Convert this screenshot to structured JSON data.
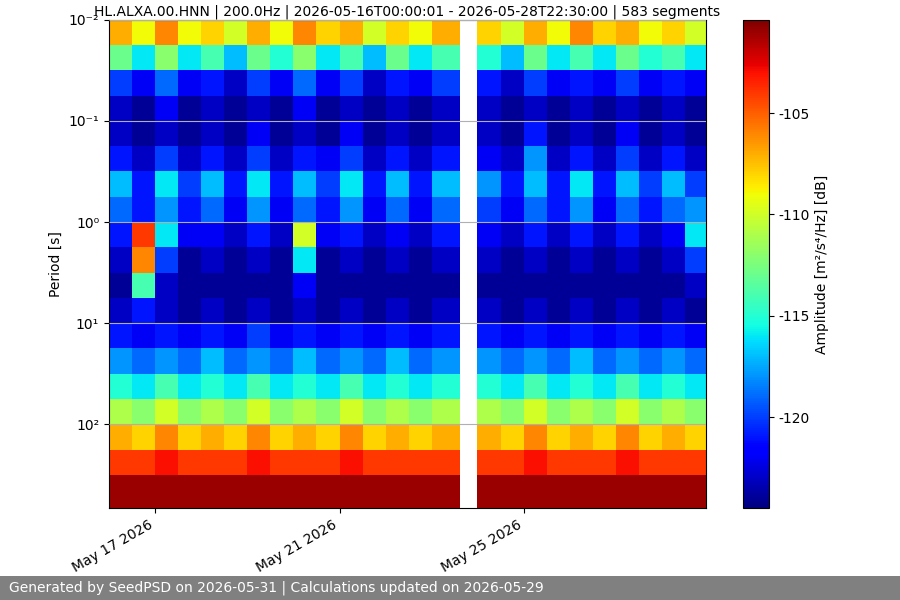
{
  "chart_data": {
    "type": "heatmap",
    "title": "HL.ALXA.00.HNN | 200.0Hz | 2026-05-16T00:00:01 - 2026-05-28T22:30:00 | 583 segments",
    "ylabel": "Period [s]",
    "footer": "Generated by SeedPSD on 2026-05-31 | Calculations updated on 2026-05-29",
    "log": "y",
    "grid": "y",
    "x": [
      "2026-05-16T00:00",
      "2026-05-16T12:00",
      "2026-05-17T00:00",
      "2026-05-17T12:00",
      "2026-05-18T00:00",
      "2026-05-18T12:00",
      "2026-05-19T00:00",
      "2026-05-19T12:00",
      "2026-05-20T00:00",
      "2026-05-20T12:00",
      "2026-05-21T00:00",
      "2026-05-21T12:00",
      "2026-05-22T00:00",
      "2026-05-22T12:00",
      "2026-05-23T00:00",
      "2026-05-23T14:30",
      "2026-05-23T23:30",
      "2026-05-24T12:00",
      "2026-05-25T00:00",
      "2026-05-25T12:00",
      "2026-05-26T00:00",
      "2026-05-26T12:00",
      "2026-05-27T00:00",
      "2026-05-27T12:00",
      "2026-05-28T00:00",
      "2026-05-28T12:00",
      "2026-05-28T22:30"
    ],
    "y": [
      0.01,
      0.0178,
      0.0316,
      0.0562,
      0.1,
      0.178,
      0.316,
      0.562,
      1,
      1.78,
      3.16,
      5.62,
      10,
      17.8,
      31.6,
      56.2,
      100,
      178,
      316,
      676
    ],
    "cells": [
      [
        -107,
        -109,
        -106,
        -109,
        -108,
        -110,
        -107,
        -109,
        -106,
        -108,
        -107,
        -110,
        -108,
        -109,
        -107,
        null,
        -108,
        -110,
        -107,
        -109,
        -106,
        -108,
        -107,
        -109,
        -108,
        -110
      ],
      [
        -113,
        -116,
        -112,
        -116,
        -114,
        -117,
        -113,
        -115,
        -112,
        -116,
        -114,
        -117,
        -113,
        -116,
        -114,
        null,
        -115,
        -117,
        -113,
        -116,
        -114,
        -116,
        -113,
        -115,
        -114,
        -116
      ],
      [
        -120,
        -122,
        -119,
        -122,
        -121,
        -123,
        -120,
        -122,
        -119,
        -122,
        -120,
        -123,
        -121,
        -122,
        -120,
        null,
        -121,
        -123,
        -120,
        -122,
        -121,
        -122,
        -120,
        -122,
        -121,
        -122
      ],
      [
        -123,
        -124,
        -122,
        -124,
        -123,
        -124,
        -123,
        -124,
        -122,
        -124,
        -123,
        -124,
        -123,
        -124,
        -123,
        null,
        -123,
        -124,
        -123,
        -124,
        -123,
        -124,
        -123,
        -124,
        -123,
        -124
      ],
      [
        -123,
        -124,
        -123,
        -124,
        -123,
        -124,
        -122,
        -124,
        -123,
        -124,
        -122,
        -124,
        -123,
        -124,
        -123,
        null,
        -123,
        -124,
        -121,
        -124,
        -123,
        -124,
        -122,
        -124,
        -123,
        -124
      ],
      [
        -121,
        -123,
        -120,
        -123,
        -121,
        -123,
        -120,
        -123,
        -121,
        -122,
        -120,
        -123,
        -121,
        -123,
        -121,
        null,
        -122,
        -123,
        -118,
        -123,
        -121,
        -123,
        -120,
        -123,
        -121,
        -123
      ],
      [
        -117,
        -121,
        -116,
        -120,
        -117,
        -121,
        -116,
        -121,
        -117,
        -120,
        -116,
        -121,
        -117,
        -121,
        -117,
        null,
        -118,
        -121,
        -117,
        -121,
        -116,
        -121,
        -117,
        -120,
        -117,
        -120
      ],
      [
        -119,
        -121,
        -118,
        -121,
        -119,
        -122,
        -118,
        -122,
        -119,
        -121,
        -118,
        -122,
        -119,
        -122,
        -119,
        null,
        -120,
        -122,
        -119,
        -121,
        -118,
        -122,
        -119,
        -121,
        -119,
        -118
      ],
      [
        -121,
        -104,
        -116,
        -122,
        -122,
        -123,
        -121,
        -123,
        -110,
        -122,
        -121,
        -123,
        -122,
        -123,
        -121,
        null,
        -122,
        -123,
        -121,
        -123,
        -121,
        -123,
        -121,
        -123,
        -122,
        -116
      ],
      [
        -123,
        -106,
        -120,
        -124,
        -123,
        -124,
        -123,
        -124,
        -116,
        -124,
        -123,
        -124,
        -123,
        -124,
        -123,
        null,
        -123,
        -124,
        -123,
        -124,
        -123,
        -124,
        -123,
        -124,
        -123,
        -120
      ],
      [
        -124,
        -114,
        -123,
        -124,
        -124,
        -124,
        -124,
        -124,
        -122,
        -124,
        -124,
        -124,
        -124,
        -124,
        -124,
        null,
        -124,
        -124,
        -124,
        -124,
        -124,
        -124,
        -124,
        -124,
        -124,
        -123
      ],
      [
        -123,
        -121,
        -123,
        -124,
        -123,
        -124,
        -123,
        -124,
        -123,
        -124,
        -123,
        -124,
        -123,
        -124,
        -123,
        null,
        -123,
        -124,
        -123,
        -124,
        -123,
        -124,
        -123,
        -124,
        -123,
        -124
      ],
      [
        -121,
        -122,
        -121,
        -122,
        -121,
        -122,
        -120,
        -122,
        -121,
        -122,
        -121,
        -122,
        -121,
        -122,
        -121,
        null,
        -121,
        -122,
        -121,
        -122,
        -121,
        -122,
        -121,
        -122,
        -121,
        -122
      ],
      [
        -118,
        -119,
        -118,
        -119,
        -117,
        -119,
        -118,
        -119,
        -117,
        -119,
        -118,
        -119,
        -117,
        -119,
        -118,
        null,
        -118,
        -119,
        -118,
        -119,
        -117,
        -119,
        -118,
        -119,
        -118,
        -119
      ],
      [
        -115,
        -116,
        -114,
        -116,
        -115,
        -116,
        -114,
        -116,
        -115,
        -116,
        -114,
        -116,
        -115,
        -116,
        -115,
        null,
        -115,
        -116,
        -114,
        -116,
        -115,
        -116,
        -114,
        -116,
        -115,
        -116
      ],
      [
        -111,
        -112,
        -110,
        -112,
        -111,
        -112,
        -110,
        -112,
        -111,
        -112,
        -110,
        -112,
        -111,
        -112,
        -111,
        null,
        -111,
        -112,
        -110,
        -112,
        -111,
        -112,
        -110,
        -112,
        -111,
        -112
      ],
      [
        -107,
        -108,
        -106,
        -108,
        -107,
        -108,
        -106,
        -108,
        -107,
        -108,
        -106,
        -108,
        -107,
        -108,
        -107,
        null,
        -107,
        -108,
        -106,
        -108,
        -107,
        -108,
        -106,
        -108,
        -107,
        -108
      ],
      [
        -104,
        -104,
        -103,
        -104,
        -104,
        -104,
        -103,
        -104,
        -104,
        -104,
        -103,
        -104,
        -104,
        -104,
        -104,
        null,
        -104,
        -104,
        -103,
        -104,
        -104,
        -104,
        -103,
        -104,
        -104,
        -104
      ],
      [
        -101,
        -101,
        -101,
        -101,
        -101,
        -101,
        -101,
        -101,
        -101,
        -101,
        -101,
        -101,
        -101,
        -101,
        -101,
        null,
        -101,
        -101,
        -101,
        -101,
        -101,
        -101,
        -101,
        -101,
        -101,
        -101
      ]
    ],
    "xlim": [
      "2026-05-16T00:00",
      "2026-05-28T22:30"
    ],
    "xticks": [
      {
        "value": "2026-05-17T00:00",
        "label": "May 17 2026"
      },
      {
        "value": "2026-05-21T00:00",
        "label": "May 21 2026"
      },
      {
        "value": "2026-05-25T00:00",
        "label": "May 25 2026"
      }
    ],
    "ylim": [
      676,
      0.01
    ],
    "yticks": [
      {
        "value": 0.01,
        "label": "10⁻²"
      },
      {
        "value": 0.1,
        "label": "10⁻¹"
      },
      {
        "value": 1,
        "label": "10⁰"
      },
      {
        "value": 10,
        "label": "10¹"
      },
      {
        "value": 100,
        "label": "10²"
      }
    ],
    "colorbar": {
      "label": "Amplitude [m²/s⁴/Hz] [dB]",
      "range": [
        -124.5,
        -100.4
      ],
      "ticks": [
        -120,
        -115,
        -110,
        -105
      ]
    }
  }
}
